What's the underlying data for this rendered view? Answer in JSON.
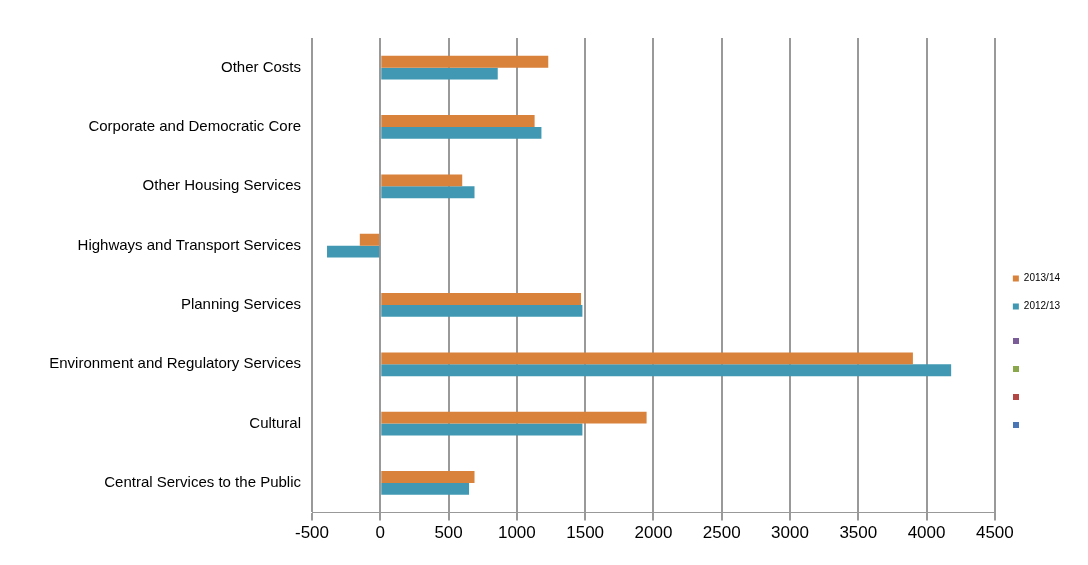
{
  "chart_data": {
    "type": "bar",
    "orientation": "horizontal",
    "categories": [
      "Other Costs",
      "Corporate and Democratic Core",
      "Other Housing Services",
      "Highways and Transport Services",
      "Planning Services",
      "Environment and Regulatory Services",
      "Cultural",
      "Central Services to the Public"
    ],
    "series": [
      {
        "name": "2013/14",
        "color": "#d9823b",
        "values": [
          1230,
          1130,
          600,
          -150,
          1470,
          3900,
          1950,
          690
        ]
      },
      {
        "name": "2012/13",
        "color": "#4198b3",
        "values": [
          860,
          1180,
          690,
          -390,
          1480,
          4180,
          1480,
          650
        ]
      }
    ],
    "xlim": [
      -500,
      4500
    ],
    "xticks": [
      -500,
      0,
      500,
      1000,
      1500,
      2000,
      2500,
      3000,
      3500,
      4000,
      4500
    ],
    "grid": "x",
    "legend": "right"
  }
}
